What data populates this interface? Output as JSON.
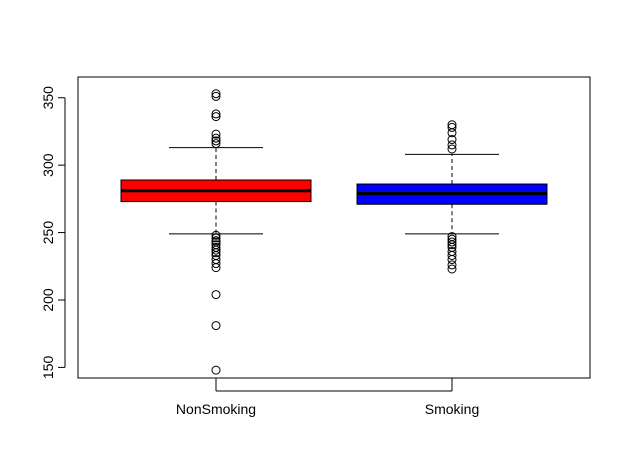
{
  "chart_data": {
    "type": "boxplot",
    "title": "",
    "xlabel": "",
    "ylabel": "",
    "categories": [
      "NonSmoking",
      "Smoking"
    ],
    "ylim": [
      140,
      360
    ],
    "yticks": [
      150,
      200,
      250,
      300,
      350
    ],
    "grid": false,
    "legend": "none",
    "boxes": [
      {
        "name": "NonSmoking",
        "color": "#ff0000",
        "whisker_low": 249,
        "q1": 273,
        "median": 281,
        "q3": 289,
        "whisker_high": 313,
        "outliers": [
          353,
          351,
          338,
          336,
          323,
          320,
          318,
          316,
          248,
          246,
          244,
          243,
          241,
          239,
          237,
          235,
          233,
          230,
          227,
          224,
          204,
          181,
          148
        ]
      },
      {
        "name": "Smoking",
        "color": "#0000ff",
        "whisker_low": 249,
        "q1": 271,
        "median": 279,
        "q3": 286,
        "whisker_high": 308,
        "outliers": [
          330,
          328,
          324,
          319,
          315,
          312,
          247,
          245,
          243,
          241,
          239,
          236,
          233,
          230,
          226,
          223
        ]
      }
    ]
  }
}
